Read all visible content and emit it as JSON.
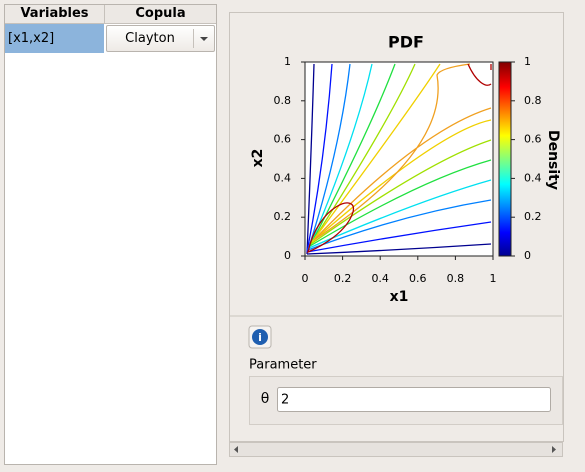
{
  "table": {
    "headers": [
      "Variables",
      "Copula"
    ],
    "rows": [
      [
        "[x1,x2]",
        "Clayton"
      ]
    ]
  },
  "chart_data": {
    "type": "contour",
    "title": "PDF",
    "x_label": "x1",
    "y_label": "x2",
    "colorbar_label": "Density",
    "xlim": [
      0,
      1
    ],
    "ylim": [
      0,
      1
    ],
    "xticks": [
      0,
      0.2,
      0.4,
      0.6,
      0.8,
      1
    ],
    "yticks": [
      0,
      0.2,
      0.4,
      0.6,
      0.8,
      1
    ],
    "colorbar_lim": [
      0,
      1
    ],
    "colorbar_ticks": [
      0,
      0.2,
      0.4,
      0.6,
      0.8,
      1
    ]
  },
  "parameter": {
    "label": "Parameter",
    "symbol": "θ",
    "value": "2"
  }
}
